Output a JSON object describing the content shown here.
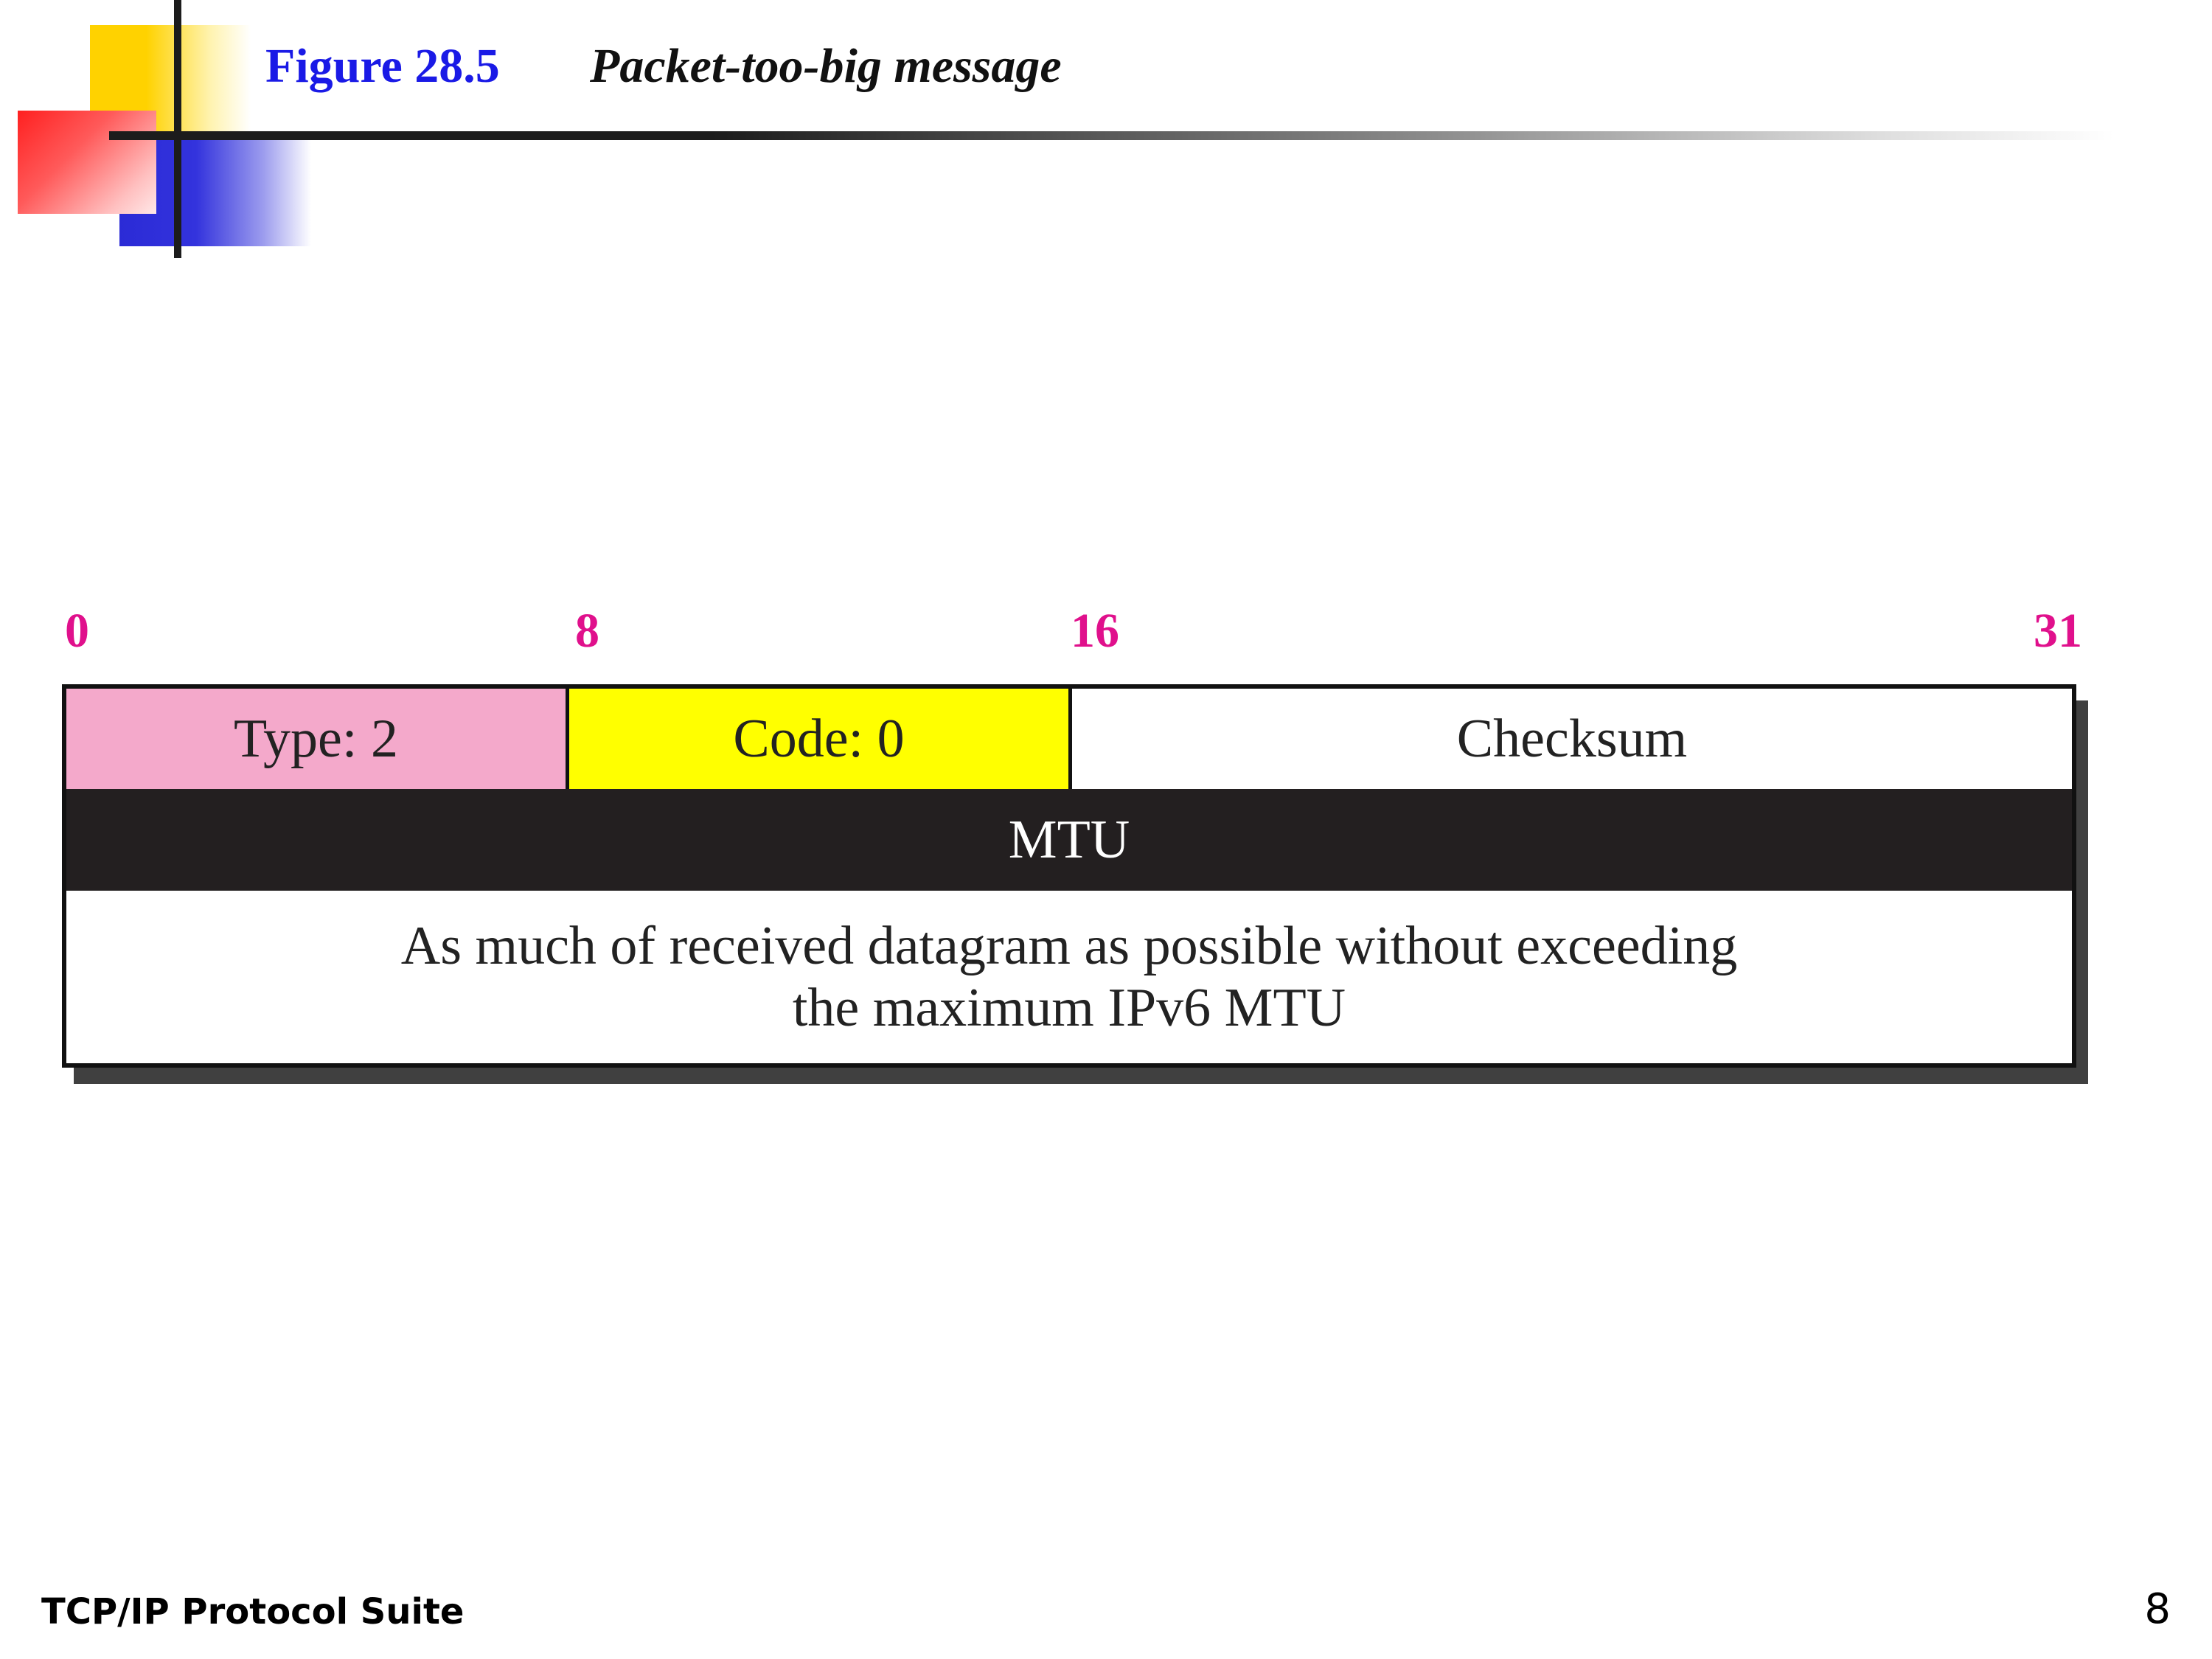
{
  "header": {
    "figure_number": "Figure 28.5",
    "figure_title": "Packet-too-big message"
  },
  "bit_positions": [
    "0",
    "8",
    "16",
    "31"
  ],
  "packet": {
    "type_field": "Type: 2",
    "code_field": "Code: 0",
    "checksum_field": "Checksum",
    "mtu_field": "MTU",
    "payload_line1": "As much of received datagram as possible without exceeding",
    "payload_line2": "the maximum IPv6 MTU"
  },
  "colors": {
    "type_bg": "#f4a9cb",
    "code_bg": "#ffff00",
    "mtu_bg": "#231f20",
    "bit_label": "#e0108c",
    "figure_number": "#1a1ae6"
  },
  "footer": {
    "left": "TCP/IP Protocol Suite",
    "page_number": "8"
  }
}
